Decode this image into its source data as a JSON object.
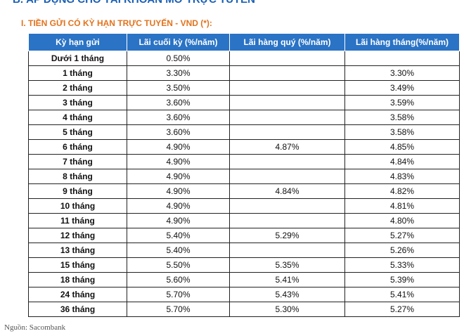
{
  "heading": "B. ÁP DỤNG CHO TÀI KHOẢN MỞ TRỰC TUYẾN",
  "subheading": "I. TIỀN GỬI CÓ KỲ HẠN TRỰC TUYẾN - VND (*):",
  "table": {
    "columns": [
      "Kỳ hạn gửi",
      "Lãi cuối kỳ (%/năm)",
      "Lãi hàng quý (%/năm)",
      "Lãi hàng tháng(%/năm)"
    ],
    "rows": [
      [
        "Dưới 1 tháng",
        "0.50%",
        null,
        null
      ],
      [
        "1 tháng",
        "3.30%",
        null,
        "3.30%"
      ],
      [
        "2 tháng",
        "3.50%",
        null,
        "3.49%"
      ],
      [
        "3 tháng",
        "3.60%",
        null,
        "3.59%"
      ],
      [
        "4 tháng",
        "3.60%",
        null,
        "3.58%"
      ],
      [
        "5 tháng",
        "3.60%",
        null,
        "3.58%"
      ],
      [
        "6 tháng",
        "4.90%",
        "4.87%",
        "4.85%"
      ],
      [
        "7 tháng",
        "4.90%",
        null,
        "4.84%"
      ],
      [
        "8 tháng",
        "4.90%",
        null,
        "4.83%"
      ],
      [
        "9 tháng",
        "4.90%",
        "4.84%",
        "4.82%"
      ],
      [
        "10 tháng",
        "4.90%",
        null,
        "4.81%"
      ],
      [
        "11 tháng",
        "4.90%",
        null,
        "4.80%"
      ],
      [
        "12 tháng",
        "5.40%",
        "5.29%",
        "5.27%"
      ],
      [
        "13 tháng",
        "5.40%",
        null,
        "5.26%"
      ],
      [
        "15 tháng",
        "5.50%",
        "5.35%",
        "5.33%"
      ],
      [
        "18 tháng",
        "5.60%",
        "5.41%",
        "5.39%"
      ],
      [
        "24 tháng",
        "5.70%",
        "5.43%",
        "5.41%"
      ],
      [
        "36 tháng",
        "5.70%",
        "5.30%",
        "5.27%"
      ]
    ]
  },
  "source": "Nguồn: Sacombank"
}
